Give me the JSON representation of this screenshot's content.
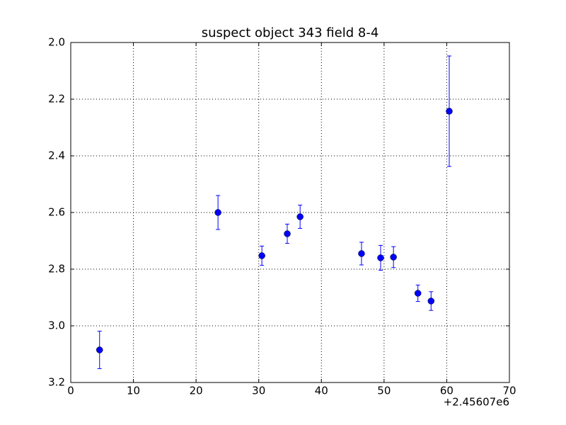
{
  "chart_data": {
    "type": "errorbar",
    "title": "suspect object 343 field 8-4",
    "x_offset_label": "+2.45607e6",
    "x": [
      4.6,
      23.5,
      30.5,
      34.55,
      36.6,
      46.4,
      49.45,
      51.5,
      55.4,
      57.5,
      60.4
    ],
    "values": [
      3.085,
      2.6,
      2.7525,
      2.675,
      2.615,
      2.745,
      2.76,
      2.7575,
      2.885,
      2.9125,
      2.2425
    ],
    "errors": [
      0.066,
      0.06,
      0.034,
      0.034,
      0.041,
      0.04,
      0.044,
      0.037,
      0.029,
      0.033,
      0.195
    ],
    "color": "#0000ff",
    "xlim": [
      0,
      70
    ],
    "xticks": [
      0,
      10,
      20,
      30,
      40,
      50,
      60,
      70
    ],
    "ylim": [
      3.2,
      2.0
    ],
    "yticks": [
      {
        "value": 2,
        "label": "2.0"
      },
      2.2,
      2.4,
      2.6,
      2.8,
      {
        "value": 3,
        "label": "3.0"
      },
      3.2
    ],
    "grid": true
  }
}
